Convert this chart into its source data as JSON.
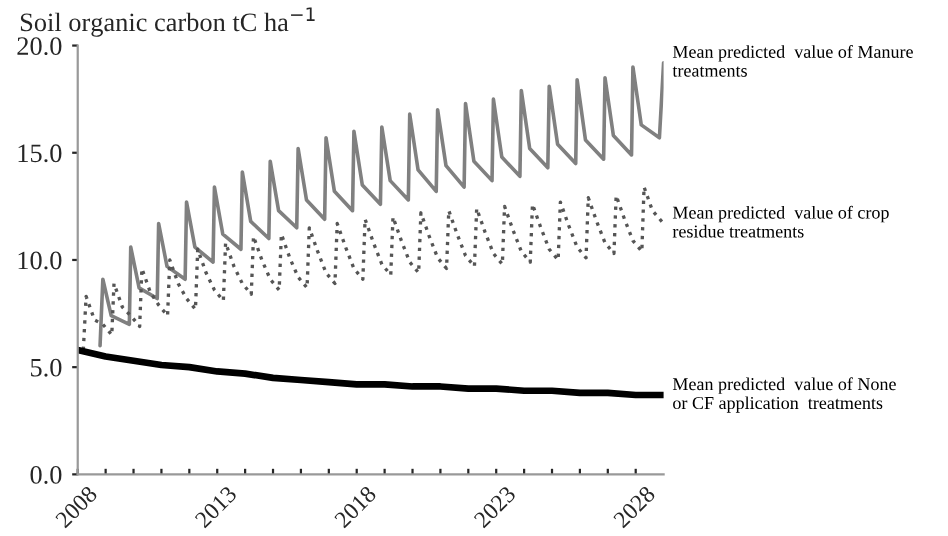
{
  "chart_data": {
    "type": "line",
    "ylabel": "Soil organic carbon tC ha$^{−1}$",
    "xlim": [
      2008,
      2029
    ],
    "ylim": [
      0,
      20
    ],
    "xticks": [
      2008,
      {
        "value": 2009,
        "label": null
      },
      {
        "value": 2010,
        "label": null
      },
      {
        "value": 2011,
        "label": null
      },
      {
        "value": 2012,
        "label": null
      },
      2013,
      {
        "value": 2014,
        "label": null
      },
      {
        "value": 2015,
        "label": null
      },
      {
        "value": 2016,
        "label": null
      },
      {
        "value": 2017,
        "label": null
      },
      2018,
      {
        "value": 2019,
        "label": null
      },
      {
        "value": 2020,
        "label": null
      },
      {
        "value": 2021,
        "label": null
      },
      {
        "value": 2022,
        "label": null
      },
      2023,
      {
        "value": 2024,
        "label": null
      },
      {
        "value": 2025,
        "label": null
      },
      {
        "value": 2026,
        "label": null
      },
      {
        "value": 2027,
        "label": null
      },
      2028
    ],
    "yticks": [
      {
        "value": 0,
        "label": "0.0"
      },
      {
        "value": 5,
        "label": "5.0"
      },
      {
        "value": 10,
        "label": "10.0"
      },
      {
        "value": 15,
        "label": "15.0"
      },
      {
        "value": 20,
        "label": "20.0"
      }
    ],
    "grid": false,
    "legend": false,
    "marker": "none",
    "series": [
      {
        "name": "Mean predicted  value of Manure\ntreatments",
        "color": "#808080",
        "line_style": "solid",
        "x": [
          2008.8,
          2008.9,
          2009.2,
          2009.85,
          2009.9,
          2010.2,
          2010.85,
          2010.9,
          2011.2,
          2011.85,
          2011.9,
          2012.2,
          2012.85,
          2012.9,
          2013.2,
          2013.85,
          2013.9,
          2014.2,
          2014.85,
          2014.9,
          2015.2,
          2015.85,
          2015.9,
          2016.2,
          2016.85,
          2016.9,
          2017.2,
          2017.85,
          2017.9,
          2018.2,
          2018.85,
          2018.9,
          2019.2,
          2019.85,
          2019.9,
          2020.2,
          2020.85,
          2020.9,
          2021.2,
          2021.85,
          2021.9,
          2022.2,
          2022.85,
          2022.9,
          2023.2,
          2023.85,
          2023.9,
          2024.2,
          2024.85,
          2024.9,
          2025.2,
          2025.85,
          2025.9,
          2026.2,
          2026.85,
          2026.9,
          2027.2,
          2027.85,
          2027.9,
          2028.2,
          2028.85,
          2029.0
        ],
        "values": [
          6.0,
          9.1,
          7.4,
          7.0,
          10.6,
          8.7,
          8.2,
          11.7,
          9.7,
          9.1,
          12.7,
          10.6,
          9.9,
          13.4,
          11.2,
          10.5,
          14.1,
          11.8,
          11.0,
          14.6,
          12.3,
          11.5,
          15.2,
          12.8,
          11.9,
          15.7,
          13.2,
          12.3,
          16.0,
          13.5,
          12.6,
          16.2,
          13.7,
          12.8,
          16.8,
          14.2,
          13.2,
          17.0,
          14.4,
          13.4,
          17.3,
          14.6,
          13.7,
          17.5,
          14.8,
          13.9,
          17.9,
          15.2,
          14.3,
          18.1,
          15.4,
          14.5,
          18.4,
          15.6,
          14.7,
          18.5,
          15.8,
          14.9,
          19.0,
          16.3,
          15.7,
          19.2
        ]
      },
      {
        "name": "Mean predicted  value of crop\nresidue treatments",
        "color": "#555555",
        "line_style": "dotted",
        "x": [
          2008.2,
          2008.3,
          2008.6,
          2008.9,
          2009.22,
          2009.3,
          2009.6,
          2009.9,
          2010.22,
          2010.3,
          2010.6,
          2010.9,
          2011.22,
          2011.3,
          2011.6,
          2011.9,
          2012.22,
          2012.3,
          2012.6,
          2012.9,
          2013.22,
          2013.3,
          2013.6,
          2013.9,
          2014.22,
          2014.3,
          2014.6,
          2014.9,
          2015.22,
          2015.3,
          2015.6,
          2015.9,
          2016.22,
          2016.3,
          2016.6,
          2016.9,
          2017.22,
          2017.3,
          2017.6,
          2017.9,
          2018.22,
          2018.3,
          2018.6,
          2018.9,
          2019.22,
          2019.3,
          2019.6,
          2019.9,
          2020.22,
          2020.3,
          2020.6,
          2020.9,
          2021.22,
          2021.3,
          2021.6,
          2021.9,
          2022.22,
          2022.3,
          2022.6,
          2022.9,
          2023.22,
          2023.3,
          2023.6,
          2023.9,
          2024.22,
          2024.3,
          2024.6,
          2024.9,
          2025.22,
          2025.3,
          2025.6,
          2025.9,
          2026.22,
          2026.3,
          2026.6,
          2026.9,
          2027.22,
          2027.3,
          2027.6,
          2027.9,
          2028.22,
          2028.3,
          2028.6,
          2029.0
        ],
        "values": [
          5.8,
          8.3,
          7.2,
          7.0,
          6.5,
          8.9,
          7.8,
          7.4,
          6.9,
          9.6,
          8.5,
          7.9,
          7.4,
          10.0,
          8.9,
          8.2,
          7.7,
          10.5,
          9.4,
          8.6,
          8.1,
          10.8,
          9.7,
          8.9,
          8.4,
          11.1,
          10.0,
          9.1,
          8.6,
          11.2,
          10.1,
          9.2,
          8.7,
          11.5,
          10.4,
          9.4,
          8.9,
          11.7,
          10.6,
          9.6,
          9.1,
          11.9,
          10.8,
          9.8,
          9.3,
          12.0,
          10.9,
          9.9,
          9.4,
          12.2,
          11.1,
          10.1,
          9.6,
          12.3,
          11.2,
          10.2,
          9.7,
          12.4,
          11.3,
          10.3,
          9.8,
          12.5,
          11.4,
          10.4,
          9.9,
          12.6,
          11.5,
          10.5,
          10.0,
          12.7,
          11.6,
          10.6,
          10.1,
          12.9,
          11.8,
          10.8,
          10.3,
          13.0,
          11.9,
          10.9,
          10.4,
          13.4,
          12.3,
          11.7
        ]
      },
      {
        "name": "Mean predicted  value of None\nor CF application  treatments",
        "color": "#000000",
        "line_style": "solid",
        "x": [
          2008,
          2009,
          2010,
          2011,
          2012,
          2013,
          2014,
          2015,
          2016,
          2017,
          2018,
          2019,
          2020,
          2021,
          2022,
          2023,
          2024,
          2025,
          2026,
          2027,
          2028,
          2029
        ],
        "values": [
          5.8,
          5.5,
          5.3,
          5.1,
          5.0,
          4.8,
          4.7,
          4.5,
          4.4,
          4.3,
          4.2,
          4.2,
          4.1,
          4.1,
          4.0,
          4.0,
          3.9,
          3.9,
          3.8,
          3.8,
          3.7,
          3.7
        ]
      }
    ]
  }
}
